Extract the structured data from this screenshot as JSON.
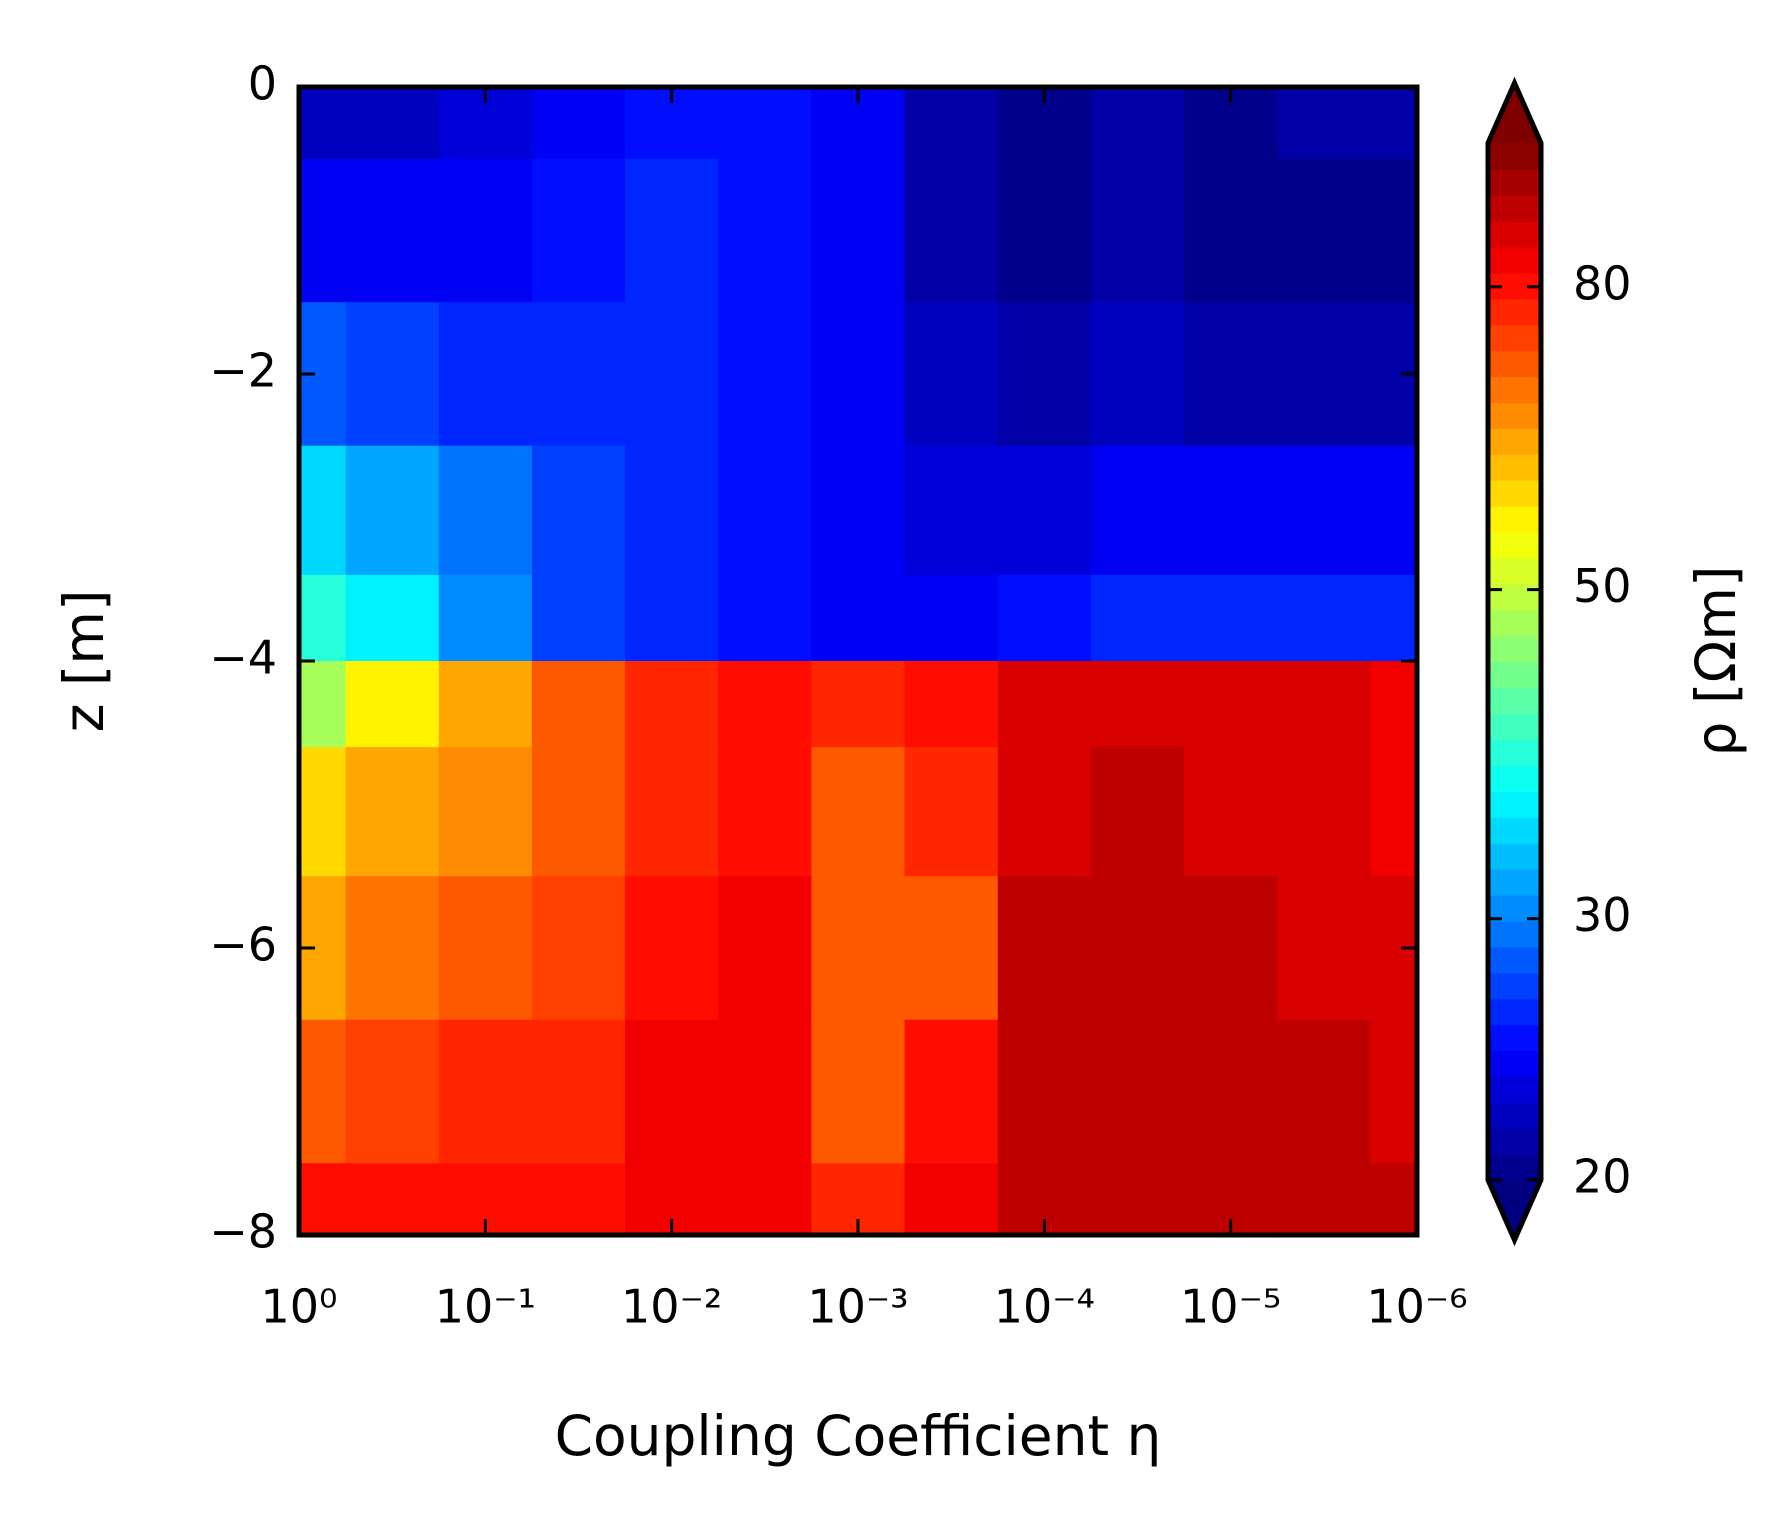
{
  "chart_data": {
    "type": "contourf",
    "x_label": "Coupling Coefficient η",
    "y_label": "z [m]",
    "x": [
      1,
      0.3162,
      0.1,
      0.03162,
      0.01,
      0.003162,
      0.001,
      0.0003162,
      0.0001,
      3.162e-05,
      1e-05,
      3.162e-06,
      1e-06
    ],
    "y": [
      0,
      -1,
      -2,
      -3,
      -3.8,
      -4.2,
      -5,
      -6,
      -7,
      -8
    ],
    "values": [
      [
        22,
        22,
        23,
        24,
        25,
        25,
        24,
        21,
        20,
        21,
        20,
        21,
        21
      ],
      [
        24,
        24,
        24,
        25,
        26,
        25,
        24,
        21,
        20,
        21,
        20,
        20,
        20
      ],
      [
        28,
        27,
        26,
        26,
        26,
        25,
        24,
        22,
        21,
        22,
        21,
        21,
        21
      ],
      [
        34,
        32,
        29,
        27,
        26,
        25,
        24,
        23,
        23,
        24,
        24,
        24,
        24
      ],
      [
        39,
        36,
        30,
        27,
        26,
        25,
        24,
        24,
        25,
        26,
        26,
        26,
        26
      ],
      [
        47,
        55,
        62,
        70,
        78,
        80,
        76,
        80,
        88,
        88,
        86,
        86,
        84
      ],
      [
        58,
        62,
        66,
        70,
        78,
        80,
        70,
        76,
        88,
        90,
        88,
        86,
        84
      ],
      [
        64,
        68,
        70,
        74,
        80,
        82,
        70,
        72,
        90,
        90,
        90,
        88,
        86
      ],
      [
        72,
        74,
        76,
        78,
        82,
        82,
        72,
        80,
        92,
        92,
        90,
        90,
        88
      ],
      [
        80,
        80,
        80,
        80,
        82,
        82,
        78,
        84,
        92,
        92,
        92,
        90,
        90
      ]
    ],
    "x_log_scale": true,
    "xlim": [
      1,
      1e-06
    ],
    "xticks": [
      {
        "value": 1,
        "label": "10⁰"
      },
      {
        "value": 0.1,
        "label": "10⁻¹"
      },
      {
        "value": 0.01,
        "label": "10⁻²"
      },
      {
        "value": 0.001,
        "label": "10⁻³"
      },
      {
        "value": 0.0001,
        "label": "10⁻⁴"
      },
      {
        "value": 1e-05,
        "label": "10⁻⁵"
      },
      {
        "value": 1e-06,
        "label": "10⁻⁶"
      }
    ],
    "ylim": [
      -8,
      0
    ],
    "yticks": [
      {
        "value": -8,
        "label": "−8"
      },
      {
        "value": -6,
        "label": "−6"
      },
      {
        "value": -4,
        "label": "−4"
      },
      {
        "value": -2,
        "label": "−2"
      },
      0
    ],
    "colorbar": {
      "label": "ρ [Ωm]",
      "lim": [
        20,
        100
      ],
      "ticks": [
        20,
        30,
        50,
        80
      ],
      "log_scale": true,
      "colormap": "jet",
      "levels": 40,
      "extend": "both"
    }
  }
}
